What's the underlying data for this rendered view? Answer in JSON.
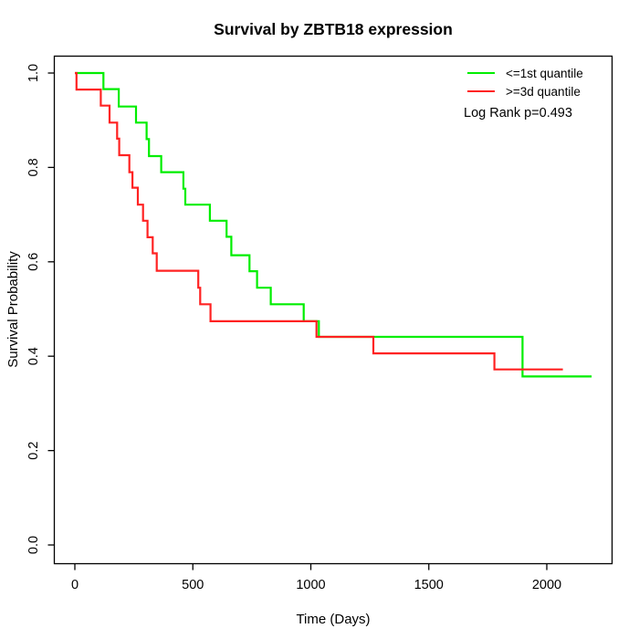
{
  "chart_data": {
    "type": "line",
    "subtype": "kaplan-meier-step",
    "title": "Survival by ZBTB18 expression",
    "xlabel": "Time (Days)",
    "ylabel": "Survival Probability",
    "grid": false,
    "legend_position": "top-right",
    "annotation": "Log Rank p=0.493",
    "x_axis": {
      "min": 0,
      "max": 2267,
      "ticks": [
        0,
        500,
        1000,
        1500,
        2000
      ],
      "tick_labels": [
        "0",
        "500",
        "1000",
        "1500",
        "2000"
      ]
    },
    "y_axis": {
      "min": 0.0,
      "max": 1.0,
      "ticks": [
        0.0,
        0.2,
        0.4,
        0.6,
        0.8,
        1.0
      ],
      "tick_labels": [
        "0.0",
        "0.2",
        "0.4",
        "0.6",
        "0.8",
        "1.0"
      ]
    },
    "series": [
      {
        "name": "<=1st quantile",
        "color": "#00EE00",
        "end_day": 2190,
        "steps": [
          [
            0,
            1.0
          ],
          [
            121,
            0.966
          ],
          [
            186,
            0.929
          ],
          [
            259,
            0.895
          ],
          [
            304,
            0.86
          ],
          [
            314,
            0.824
          ],
          [
            366,
            0.79
          ],
          [
            460,
            0.755
          ],
          [
            468,
            0.721
          ],
          [
            572,
            0.687
          ],
          [
            643,
            0.653
          ],
          [
            663,
            0.614
          ],
          [
            740,
            0.58
          ],
          [
            772,
            0.545
          ],
          [
            830,
            0.51
          ],
          [
            970,
            0.474
          ],
          [
            1034,
            0.441
          ],
          [
            1897,
            0.357
          ]
        ]
      },
      {
        "name": ">=3d quantile",
        "color": "#FF2222",
        "end_day": 2068,
        "steps": [
          [
            0,
            1.0
          ],
          [
            7,
            0.965
          ],
          [
            110,
            0.931
          ],
          [
            147,
            0.895
          ],
          [
            179,
            0.861
          ],
          [
            188,
            0.826
          ],
          [
            231,
            0.79
          ],
          [
            244,
            0.757
          ],
          [
            267,
            0.721
          ],
          [
            289,
            0.687
          ],
          [
            308,
            0.652
          ],
          [
            330,
            0.618
          ],
          [
            347,
            0.581
          ],
          [
            523,
            0.545
          ],
          [
            531,
            0.51
          ],
          [
            575,
            0.474
          ],
          [
            1024,
            0.441
          ],
          [
            1265,
            0.406
          ],
          [
            1778,
            0.372
          ]
        ]
      }
    ],
    "axis_color": "#000000"
  }
}
